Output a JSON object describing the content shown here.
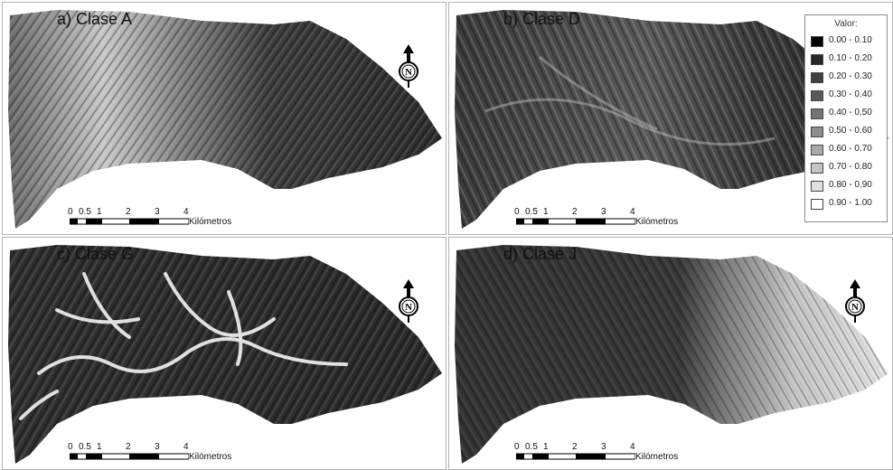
{
  "panels": [
    {
      "id": "a",
      "title": "a) Clase A"
    },
    {
      "id": "b",
      "title": "b) Clase D"
    },
    {
      "id": "c",
      "title": "c) Clase G"
    },
    {
      "id": "d",
      "title": "d) Clase J"
    }
  ],
  "north_arrow": {
    "letter": "N",
    "icon": "north-arrow-icon"
  },
  "scale_bar": {
    "ticks": [
      "0",
      "0.5",
      "1",
      "2",
      "3",
      "4"
    ],
    "unit": "Kilómetros"
  },
  "legend": {
    "title": "Valor:",
    "classes": [
      {
        "label": "0.00 - 0.10",
        "color": "#000000"
      },
      {
        "label": "0.10 - 0.20",
        "color": "#262626"
      },
      {
        "label": "0.20 - 0.30",
        "color": "#404040"
      },
      {
        "label": "0.30 - 0.40",
        "color": "#5a5a5a"
      },
      {
        "label": "0.40 - 0.50",
        "color": "#747474"
      },
      {
        "label": "0.50 - 0.60",
        "color": "#8e8e8e"
      },
      {
        "label": "0.60 - 0.70",
        "color": "#a8a8a8"
      },
      {
        "label": "0.70 - 0.80",
        "color": "#c4c4c4"
      },
      {
        "label": "0.80 - 0.90",
        "color": "#e0e0e0"
      },
      {
        "label": "0.90 - 1.00",
        "color": "#ffffff"
      }
    ]
  }
}
